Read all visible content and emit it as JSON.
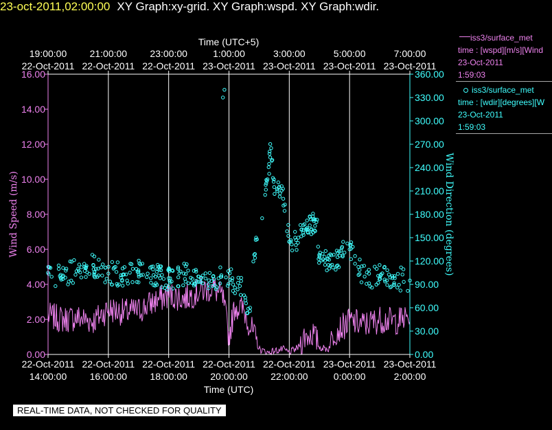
{
  "header": {
    "timestamp": "23-oct-2011,02:00:00",
    "graphs": "XY Graph:xy-grid.  XY Graph:wspd.  XY Graph:wdir."
  },
  "legend": {
    "series1": {
      "name": "iss3/surface_met",
      "line2": "time : [wspd][m/s][Wind",
      "line3": "23-Oct-2011",
      "line4": "1:59:03"
    },
    "series2": {
      "name": "iss3/surface_met",
      "line2": "time : [wdir][degrees][W",
      "line3": "23-Oct-2011",
      "line4": "1:59:03"
    }
  },
  "footer": {
    "qc_label": "REAL-TIME DATA, NOT CHECKED FOR QUALITY"
  },
  "colors": {
    "wspd": "#ee82ee",
    "wdir": "#40ffff",
    "grid": "#ffffff",
    "background": "#000000"
  },
  "chart_data": {
    "type": "line",
    "x_unit": "hours from 22-Oct-2011 14:00 UTC",
    "xlim": [
      0,
      12
    ],
    "xlabel_bottom": "Time (UTC)",
    "xlabel_top": "Time (UTC+5)",
    "top_ticks": [
      {
        "time": "19:00:00",
        "date": "22-Oct-2011"
      },
      {
        "time": "21:00:00",
        "date": "22-Oct-2011"
      },
      {
        "time": "23:00:00",
        "date": "22-Oct-2011"
      },
      {
        "time": "1:00:00",
        "date": "23-Oct-2011"
      },
      {
        "time": "3:00:00",
        "date": "23-Oct-2011"
      },
      {
        "time": "5:00:00",
        "date": "23-Oct-2011"
      },
      {
        "time": "7:00:00",
        "date": "23-Oct-2011"
      }
    ],
    "bottom_ticks": [
      {
        "date": "22-Oct-2011",
        "time": "14:00:00"
      },
      {
        "date": "22-Oct-2011",
        "time": "16:00:00"
      },
      {
        "date": "22-Oct-2011",
        "time": "18:00:00"
      },
      {
        "date": "22-Oct-2011",
        "time": "20:00:00"
      },
      {
        "date": "22-Oct-2011",
        "time": "22:00:00"
      },
      {
        "date": "23-Oct-2011",
        "time": "0:00:00"
      },
      {
        "date": "23-Oct-2011",
        "time": "2:00:00"
      }
    ],
    "left_axis": {
      "label": "Wind Speed (m/s)",
      "min": 0,
      "max": 16,
      "ticks": [
        "0.00",
        "2.00",
        "4.00",
        "6.00",
        "8.00",
        "10.00",
        "12.00",
        "14.00",
        "16.00"
      ]
    },
    "right_axis": {
      "label": "Wind Direction (degrees)",
      "min": 0,
      "max": 360,
      "ticks": [
        "0.00",
        "30.00",
        "60.00",
        "90.00",
        "120.00",
        "150.00",
        "180.00",
        "210.00",
        "240.00",
        "270.00",
        "300.00",
        "330.00",
        "360.00"
      ]
    },
    "grid": "vertical",
    "series": [
      {
        "name": "iss3/surface_met",
        "variable": "wspd",
        "style": "line",
        "x": [
          0,
          0.5,
          1,
          1.5,
          2,
          2.5,
          3,
          3.5,
          4,
          4.5,
          5,
          5.5,
          5.8,
          6.0,
          6.2,
          6.5,
          6.8,
          7.0,
          7.3,
          7.5,
          7.8,
          8.0,
          8.3,
          8.5,
          8.8,
          9.0,
          9.3,
          9.5,
          9.8,
          10.0,
          10.5,
          11,
          11.5,
          12
        ],
        "y": [
          2.2,
          2.0,
          2.1,
          1.9,
          2.6,
          2.4,
          2.5,
          3.0,
          3.4,
          3.2,
          3.6,
          3.8,
          3.2,
          1.0,
          2.8,
          2.5,
          1.2,
          0.3,
          0.1,
          0.2,
          0.3,
          0.1,
          0.4,
          1.0,
          1.2,
          0.4,
          0.3,
          1.3,
          1.6,
          1.9,
          1.7,
          2.0,
          1.9,
          2.1
        ]
      },
      {
        "name": "iss3/surface_met",
        "variable": "wdir",
        "style": "markers",
        "x": [
          0,
          0.5,
          1,
          1.5,
          2,
          2.5,
          3,
          3.5,
          4,
          4.5,
          5,
          5.5,
          5.8,
          5.85,
          5.9,
          6.1,
          6.3,
          6.7,
          6.9,
          7.1,
          7.2,
          7.4,
          7.5,
          7.6,
          7.8,
          8.0,
          8.3,
          8.6,
          8.9,
          9.0,
          9.3,
          9.6,
          10.0,
          10.5,
          11,
          11.5,
          12
        ],
        "y": [
          105,
          100,
          110,
          115,
          104,
          103,
          106,
          102,
          98,
          104,
          100,
          97,
          330,
          340,
          99,
          95,
          92,
          60,
          150,
          175,
          205,
          265,
          215,
          210,
          200,
          145,
          150,
          160,
          170,
          125,
          115,
          125,
          135,
          100,
          100,
          98,
          95
        ]
      }
    ]
  }
}
